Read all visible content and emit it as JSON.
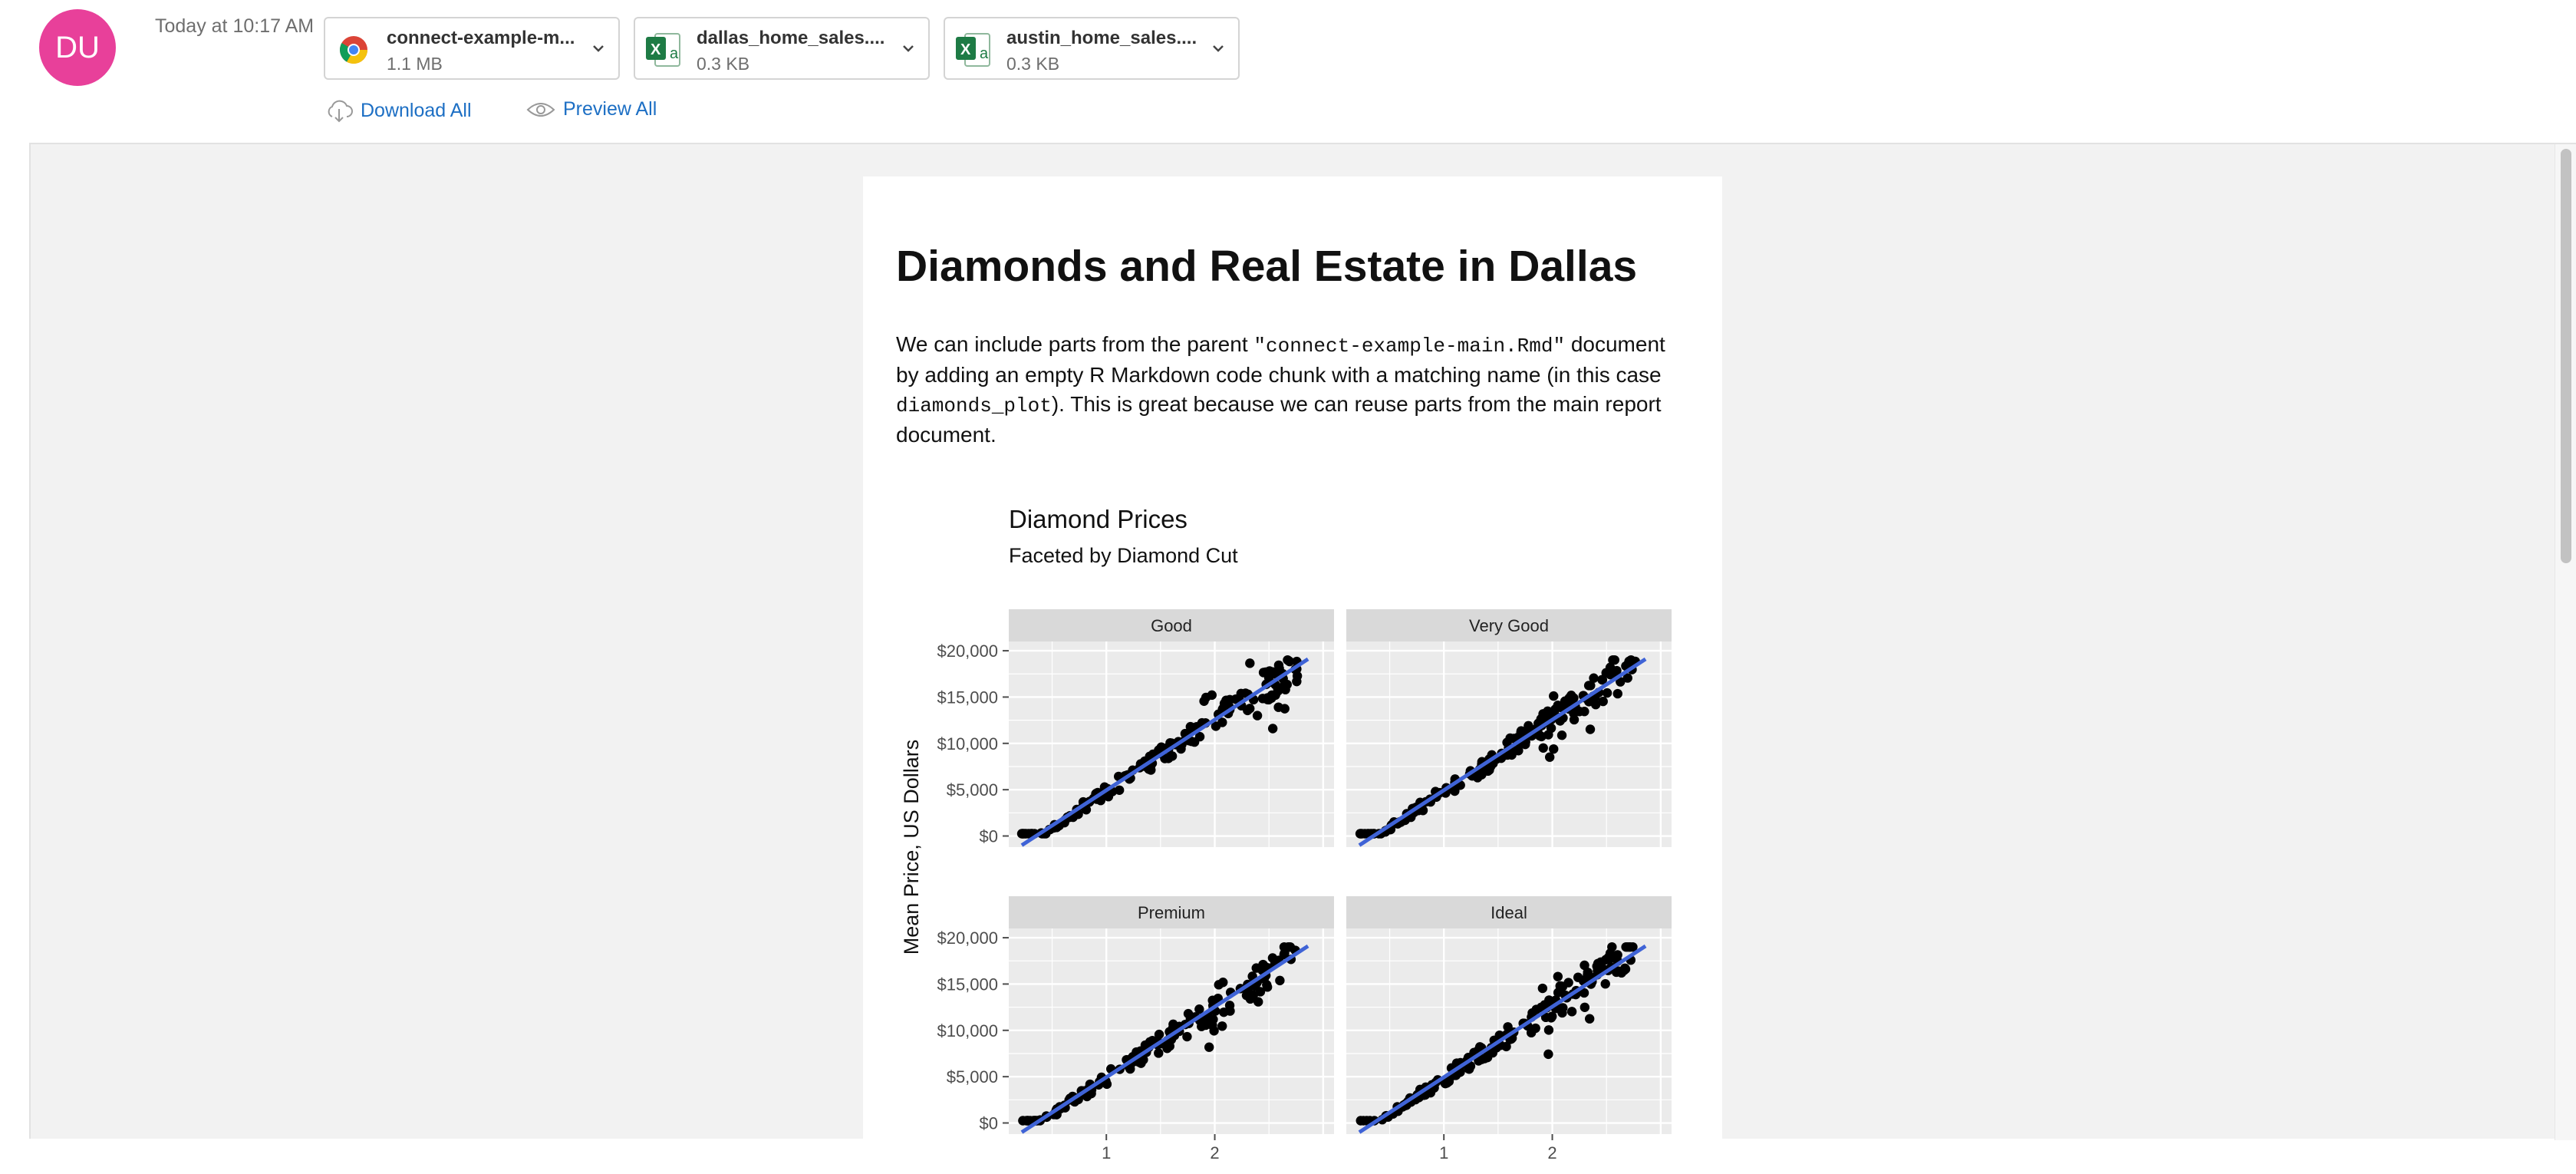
{
  "sender": {
    "avatar_initials": "DU",
    "timestamp": "Today at 10:17 AM",
    "avatar_color": "#e8409a"
  },
  "attachments": [
    {
      "name": "connect-example-m...",
      "size": "1.1 MB",
      "icon": "chrome-icon"
    },
    {
      "name": "dallas_home_sales....",
      "size": "0.3 KB",
      "icon": "excel-icon"
    },
    {
      "name": "austin_home_sales....",
      "size": "0.3 KB",
      "icon": "excel-icon"
    }
  ],
  "actions": {
    "download_all": "Download All",
    "preview_all": "Preview All"
  },
  "document": {
    "title": "Diamonds and Real Estate in Dallas",
    "para_1": "We can include parts from the parent ",
    "code_1": "\"connect-example-main.Rmd\"",
    "para_2": " document by adding an empty R Markdown code chunk with a matching name (in this case ",
    "code_2": "diamonds_plot",
    "para_3": "). This is great because we can reuse parts from the main report document."
  },
  "chart_data": {
    "type": "scatter",
    "title": "Diamond Prices",
    "subtitle": "Faceted by Diamond Cut",
    "ylabel": "Mean Price, US Dollars",
    "xlabel": "",
    "facets": [
      "Good",
      "Very Good",
      "Premium",
      "Ideal"
    ],
    "x_ticks": [
      1,
      2
    ],
    "y_ticks": [
      "$0",
      "$5,000",
      "$10,000",
      "$15,000",
      "$20,000"
    ],
    "y_tick_values": [
      0,
      5000,
      10000,
      15000,
      20000
    ],
    "xlim": [
      0.1,
      3.1
    ],
    "ylim": [
      -1200,
      21000
    ],
    "trend_color": "#3f63d6",
    "point_color": "#000000",
    "panel_bg": "#ebebeb",
    "strip_bg": "#d9d9d9"
  }
}
